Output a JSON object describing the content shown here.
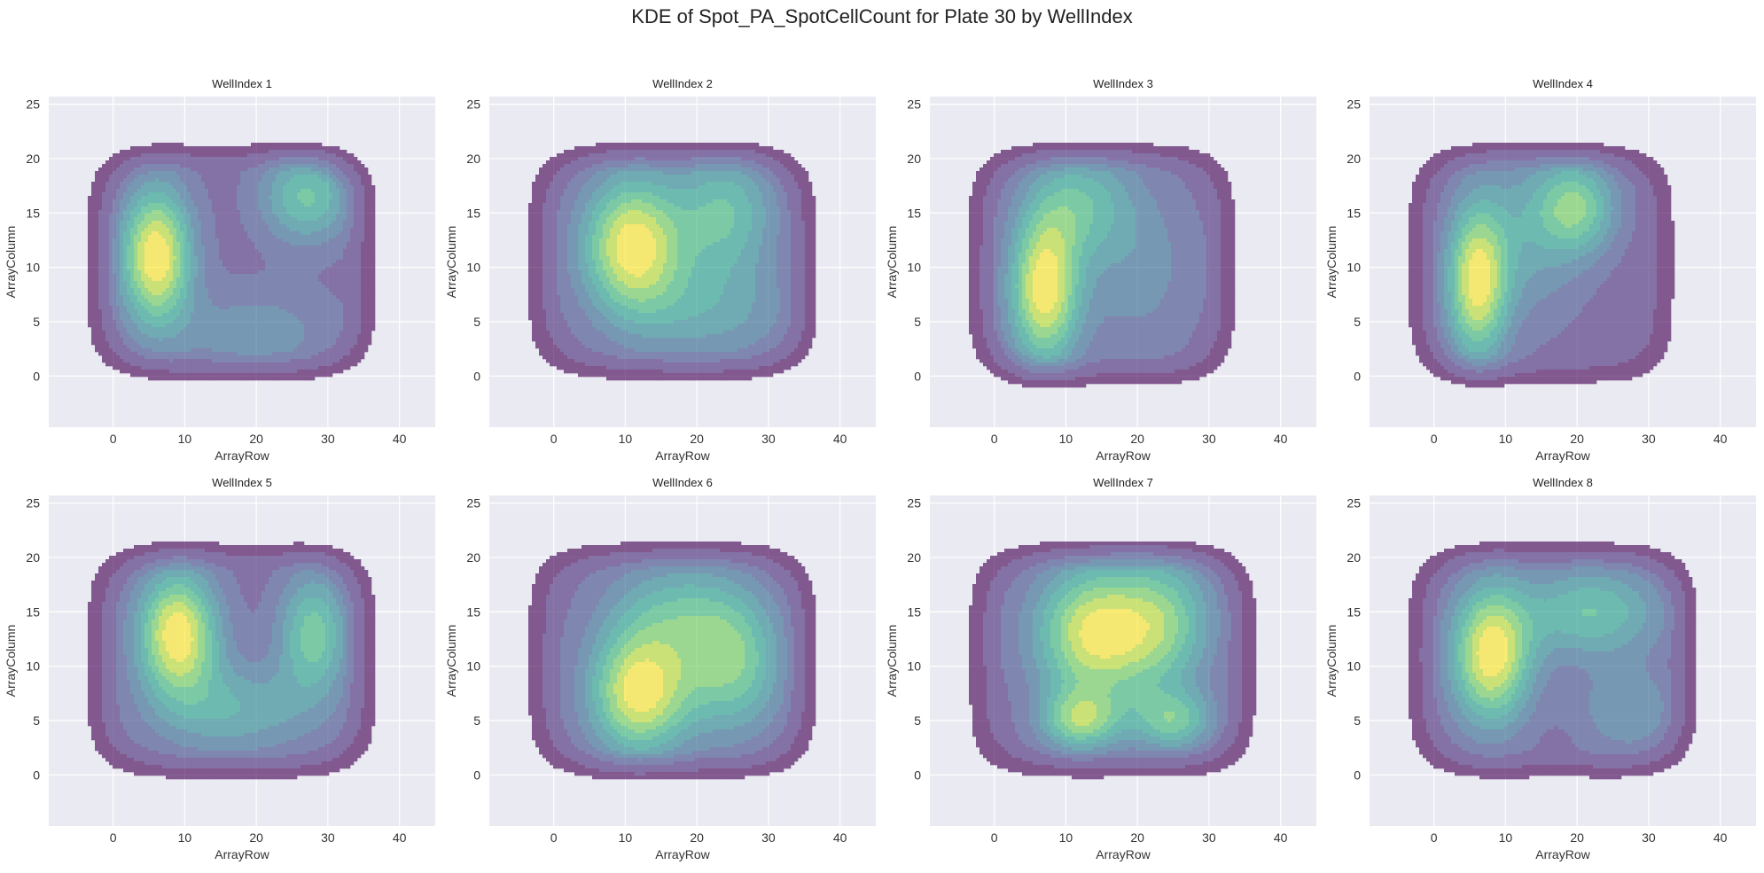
{
  "figure": {
    "title": "KDE of Spot_PA_SpotCellCount for Plate 30 by WellIndex",
    "background": "#ffffff",
    "plot_background": "#eaeaf2",
    "grid_color": "#ffffff"
  },
  "chart_data": [
    {
      "type": "kde_contour",
      "title": "WellIndex 1",
      "xlabel": "ArrayRow",
      "ylabel": "ArrayColumn",
      "xlim": [
        -9,
        45
      ],
      "ylim": [
        -4.7,
        25.7
      ],
      "xticks": [
        0,
        10,
        20,
        30,
        40
      ],
      "yticks": [
        0,
        5,
        10,
        15,
        20
      ],
      "grid": true,
      "colormap": "viridis",
      "extent": {
        "x": [
          -5,
          38
        ],
        "y": [
          -1,
          22
        ]
      },
      "modes": [
        {
          "x": 6,
          "y": 11,
          "sx": 3.5,
          "sy": 4.5,
          "w": 1.0
        },
        {
          "x": 27,
          "y": 16.5,
          "sx": 4.5,
          "sy": 3,
          "w": 0.55
        },
        {
          "x": 20,
          "y": 4,
          "sx": 8,
          "sy": 3,
          "w": 0.25
        }
      ]
    },
    {
      "type": "kde_contour",
      "title": "WellIndex 2",
      "xlabel": "ArrayRow",
      "ylabel": "ArrayColumn",
      "xlim": [
        -9,
        45
      ],
      "ylim": [
        -4.7,
        25.7
      ],
      "xticks": [
        0,
        10,
        20,
        30,
        40
      ],
      "yticks": [
        0,
        5,
        10,
        15,
        20
      ],
      "grid": true,
      "colormap": "viridis",
      "extent": {
        "x": [
          -5,
          38
        ],
        "y": [
          -1,
          22
        ]
      },
      "modes": [
        {
          "x": 11,
          "y": 12,
          "sx": 5,
          "sy": 4.5,
          "w": 1.0
        },
        {
          "x": 24,
          "y": 15,
          "sx": 5,
          "sy": 4,
          "w": 0.55
        },
        {
          "x": 22,
          "y": 6,
          "sx": 8,
          "sy": 3.5,
          "w": 0.35
        }
      ]
    },
    {
      "type": "kde_contour",
      "title": "WellIndex 3",
      "xlabel": "ArrayRow",
      "ylabel": "ArrayColumn",
      "xlim": [
        -9,
        45
      ],
      "ylim": [
        -4.7,
        25.7
      ],
      "xticks": [
        0,
        10,
        20,
        30,
        40
      ],
      "yticks": [
        0,
        5,
        10,
        15,
        20
      ],
      "grid": true,
      "colormap": "viridis",
      "extent": {
        "x": [
          -5,
          35
        ],
        "y": [
          -1.5,
          22
        ]
      },
      "modes": [
        {
          "x": 7,
          "y": 8,
          "sx": 3.5,
          "sy": 5,
          "w": 1.0
        },
        {
          "x": 12,
          "y": 16,
          "sx": 5,
          "sy": 3.5,
          "w": 0.45
        },
        {
          "x": 20,
          "y": 10,
          "sx": 6,
          "sy": 6,
          "w": 0.25
        }
      ]
    },
    {
      "type": "kde_contour",
      "title": "WellIndex 4",
      "xlabel": "ArrayRow",
      "ylabel": "ArrayColumn",
      "xlim": [
        -9,
        45
      ],
      "ylim": [
        -4.7,
        25.7
      ],
      "xticks": [
        0,
        10,
        20,
        30,
        40
      ],
      "yticks": [
        0,
        5,
        10,
        15,
        20
      ],
      "grid": true,
      "colormap": "viridis",
      "extent": {
        "x": [
          -5,
          35
        ],
        "y": [
          -1.5,
          22
        ]
      },
      "modes": [
        {
          "x": 6,
          "y": 8.5,
          "sx": 3,
          "sy": 5,
          "w": 1.0
        },
        {
          "x": 20,
          "y": 15.5,
          "sx": 4,
          "sy": 3,
          "w": 0.65
        },
        {
          "x": 13,
          "y": 13,
          "sx": 6,
          "sy": 6,
          "w": 0.35
        }
      ]
    },
    {
      "type": "kde_contour",
      "title": "WellIndex 5",
      "xlabel": "ArrayRow",
      "ylabel": "ArrayColumn",
      "xlim": [
        -9,
        45
      ],
      "ylim": [
        -4.7,
        25.7
      ],
      "xticks": [
        0,
        10,
        20,
        30,
        40
      ],
      "yticks": [
        0,
        5,
        10,
        15,
        20
      ],
      "grid": true,
      "colormap": "viridis",
      "extent": {
        "x": [
          -5,
          38
        ],
        "y": [
          -1,
          22
        ]
      },
      "modes": [
        {
          "x": 9,
          "y": 13,
          "sx": 4,
          "sy": 4,
          "w": 1.0
        },
        {
          "x": 28,
          "y": 13,
          "sx": 3.5,
          "sy": 4,
          "w": 0.6
        },
        {
          "x": 17,
          "y": 6,
          "sx": 8,
          "sy": 3,
          "w": 0.4
        }
      ]
    },
    {
      "type": "kde_contour",
      "title": "WellIndex 6",
      "xlabel": "ArrayRow",
      "ylabel": "ArrayColumn",
      "xlim": [
        -9,
        45
      ],
      "ylim": [
        -4.7,
        25.7
      ],
      "xticks": [
        0,
        10,
        20,
        30,
        40
      ],
      "yticks": [
        0,
        5,
        10,
        15,
        20
      ],
      "grid": true,
      "colormap": "viridis",
      "extent": {
        "x": [
          -5,
          38
        ],
        "y": [
          -1,
          22
        ]
      },
      "modes": [
        {
          "x": 12,
          "y": 7.5,
          "sx": 5,
          "sy": 4,
          "w": 1.0
        },
        {
          "x": 25,
          "y": 10,
          "sx": 5,
          "sy": 4.5,
          "w": 0.65
        },
        {
          "x": 17,
          "y": 15,
          "sx": 7,
          "sy": 3.5,
          "w": 0.45
        }
      ]
    },
    {
      "type": "kde_contour",
      "title": "WellIndex 7",
      "xlabel": "ArrayRow",
      "ylabel": "ArrayColumn",
      "xlim": [
        -9,
        45
      ],
      "ylim": [
        -4.7,
        25.7
      ],
      "xticks": [
        0,
        10,
        20,
        30,
        40
      ],
      "yticks": [
        0,
        5,
        10,
        15,
        20
      ],
      "grid": true,
      "colormap": "viridis",
      "extent": {
        "x": [
          -5,
          38
        ],
        "y": [
          -1,
          22
        ]
      },
      "modes": [
        {
          "x": 14,
          "y": 13,
          "sx": 6,
          "sy": 4.5,
          "w": 1.0
        },
        {
          "x": 12,
          "y": 5,
          "sx": 4,
          "sy": 2,
          "w": 0.7
        },
        {
          "x": 25,
          "y": 5,
          "sx": 4,
          "sy": 2,
          "w": 0.6
        },
        {
          "x": 24,
          "y": 14,
          "sx": 5,
          "sy": 4.5,
          "w": 0.6
        }
      ]
    },
    {
      "type": "kde_contour",
      "title": "WellIndex 8",
      "xlabel": "ArrayRow",
      "ylabel": "ArrayColumn",
      "xlim": [
        -9,
        45
      ],
      "ylim": [
        -4.7,
        25.7
      ],
      "xticks": [
        0,
        10,
        20,
        30,
        40
      ],
      "yticks": [
        0,
        5,
        10,
        15,
        20
      ],
      "grid": true,
      "colormap": "viridis",
      "extent": {
        "x": [
          -5,
          38
        ],
        "y": [
          -1,
          22
        ]
      },
      "modes": [
        {
          "x": 8,
          "y": 11,
          "sx": 4,
          "sy": 4.5,
          "w": 1.0
        },
        {
          "x": 22,
          "y": 15,
          "sx": 7,
          "sy": 3,
          "w": 0.55
        },
        {
          "x": 27,
          "y": 6,
          "sx": 5,
          "sy": 3,
          "w": 0.3
        }
      ]
    }
  ]
}
